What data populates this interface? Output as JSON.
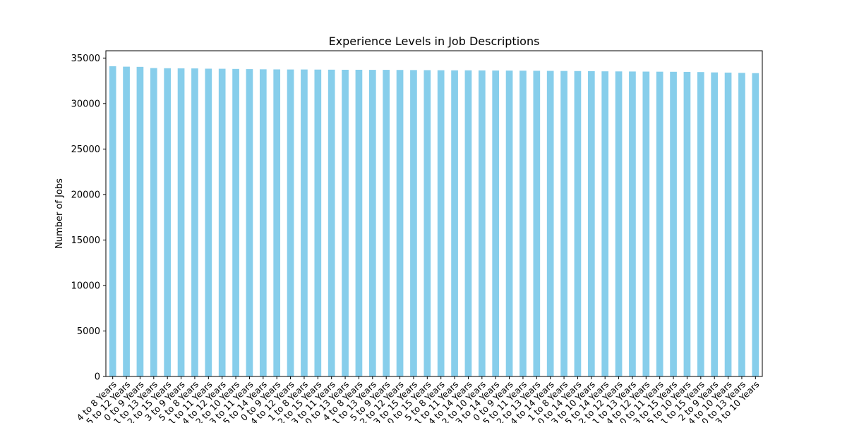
{
  "chart_data": {
    "type": "bar",
    "title": "Experience Levels in Job Descriptions",
    "xlabel": "",
    "ylabel": "Number of Jobs",
    "ylim": [
      0,
      35800
    ],
    "yticks": [
      0,
      5000,
      10000,
      15000,
      20000,
      25000,
      30000,
      35000
    ],
    "grid": false,
    "bar_color": "#87ceeb",
    "categories": [
      "4 to 8 Years",
      "5 to 12 Years",
      "0 to 9 Years",
      "1 to 13 Years",
      "2 to 15 Years",
      "3 to 9 Years",
      "5 to 8 Years",
      "1 to 11 Years",
      "4 to 12 Years",
      "2 to 10 Years",
      "3 to 11 Years",
      "5 to 14 Years",
      "0 to 9 Years",
      "4 to 12 Years",
      "1 to 8 Years",
      "2 to 15 Years",
      "3 to 11 Years",
      "0 to 13 Years",
      "4 to 8 Years",
      "1 to 13 Years",
      "5 to 9 Years",
      "2 to 12 Years",
      "3 to 15 Years",
      "0 to 15 Years",
      "5 to 8 Years",
      "1 to 11 Years",
      "4 to 14 Years",
      "2 to 10 Years",
      "3 to 14 Years",
      "0 to 9 Years",
      "5 to 11 Years",
      "2 to 13 Years",
      "4 to 14 Years",
      "1 to 8 Years",
      "0 to 14 Years",
      "3 to 10 Years",
      "5 to 14 Years",
      "2 to 12 Years",
      "1 to 13 Years",
      "4 to 12 Years",
      "0 to 11 Years",
      "3 to 15 Years",
      "5 to 10 Years",
      "1 to 15 Years",
      "2 to 9 Years",
      "4 to 10 Years",
      "0 to 13 Years",
      "3 to 10 Years"
    ],
    "values": [
      34100,
      34050,
      34030,
      33900,
      33880,
      33870,
      33860,
      33830,
      33820,
      33800,
      33780,
      33760,
      33750,
      33740,
      33740,
      33730,
      33720,
      33710,
      33710,
      33700,
      33700,
      33690,
      33680,
      33670,
      33660,
      33650,
      33650,
      33640,
      33630,
      33620,
      33610,
      33600,
      33590,
      33580,
      33570,
      33560,
      33540,
      33530,
      33520,
      33510,
      33500,
      33490,
      33480,
      33460,
      33420,
      33400,
      33370,
      33340
    ]
  }
}
